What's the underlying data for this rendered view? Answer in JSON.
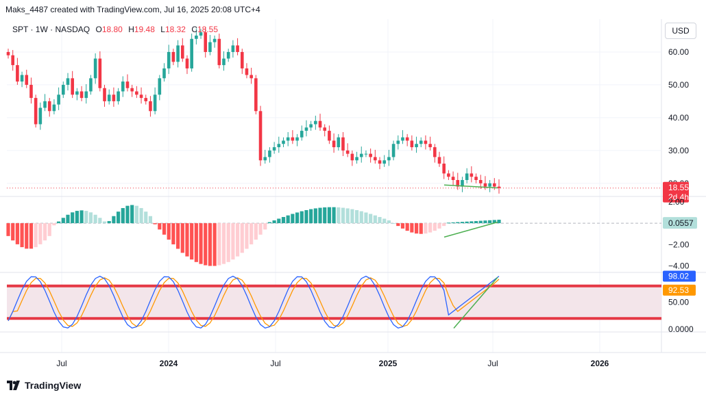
{
  "header": {
    "text": "Maks_4487 created with TradingView.com, Jul 16, 2025 20:08 UTC+4"
  },
  "legend": {
    "symbol": "SPT · 1W · NASDAQ",
    "o_label": "O",
    "o_value": "18.80",
    "h_label": "H",
    "h_value": "19.48",
    "l_label": "L",
    "l_value": "18.32",
    "c_label": "C",
    "c_value": "18.55"
  },
  "currency_button": "USD",
  "footer": {
    "brand": "TradingView"
  },
  "colors": {
    "up": "#26a69a",
    "down": "#f23645",
    "hist_up_strong": "#26a69a",
    "hist_up_weak": "#b2dfdb",
    "hist_down_strong": "#ff5252",
    "hist_down_weak": "#ffcdd2",
    "stoch_k": "#2962ff",
    "stoch_d": "#ff9800",
    "band_line": "#e53945",
    "band_fill": "#f3e5ea",
    "trendline": "#4caf50"
  },
  "chart_data": [
    {
      "type": "candlestick",
      "symbol": "SPT",
      "interval": "1W",
      "exchange": "NASDAQ",
      "price_axis_ticks": [
        "60.00",
        "50.00",
        "40.00",
        "30.00",
        "20.00"
      ],
      "ylim": [
        16,
        70
      ],
      "last_price": "18.55",
      "countdown": "2d 4h",
      "time_axis_labels": [
        "Jul",
        "2024",
        "Jul",
        "2025",
        "Jul",
        "2026"
      ],
      "weekly_closes": [
        59,
        56,
        51,
        53,
        50,
        46,
        38,
        43,
        45,
        42,
        44,
        47,
        50,
        52,
        47,
        48,
        46,
        48,
        52,
        58,
        49,
        45,
        47,
        45,
        48,
        51,
        49,
        48,
        47,
        46,
        45,
        42,
        47,
        52,
        55,
        60,
        57,
        62,
        58,
        55,
        64,
        65,
        66,
        60,
        63,
        64,
        56,
        58,
        60,
        62,
        60,
        55,
        53,
        52,
        42,
        27,
        28,
        30,
        31,
        32,
        33,
        34,
        33,
        34,
        36,
        37,
        38,
        39,
        37,
        36,
        33,
        31,
        34,
        30,
        29,
        27,
        28,
        29,
        29,
        28,
        27,
        26,
        27,
        28,
        32,
        33,
        34,
        33,
        31,
        32,
        33,
        32,
        31,
        28,
        26,
        23,
        22,
        21,
        19,
        21,
        23,
        22,
        21,
        20,
        19,
        20,
        19,
        18.55
      ],
      "annotations": [
        "green trendline along lows"
      ]
    },
    {
      "type": "histogram",
      "name": "MACD",
      "axis_ticks": [
        "2.00",
        "−2.00",
        "−4.00"
      ],
      "ylim": [
        -4.6,
        2.5
      ],
      "last_value": "0.0557"
    },
    {
      "type": "line",
      "name": "Stochastic",
      "axis_ticks": [
        "50.00",
        "0.0000"
      ],
      "ylim": [
        -5,
        105
      ],
      "bands": [
        80,
        20
      ],
      "series_k_last": "98.02",
      "series_d_last": "92.53"
    }
  ]
}
